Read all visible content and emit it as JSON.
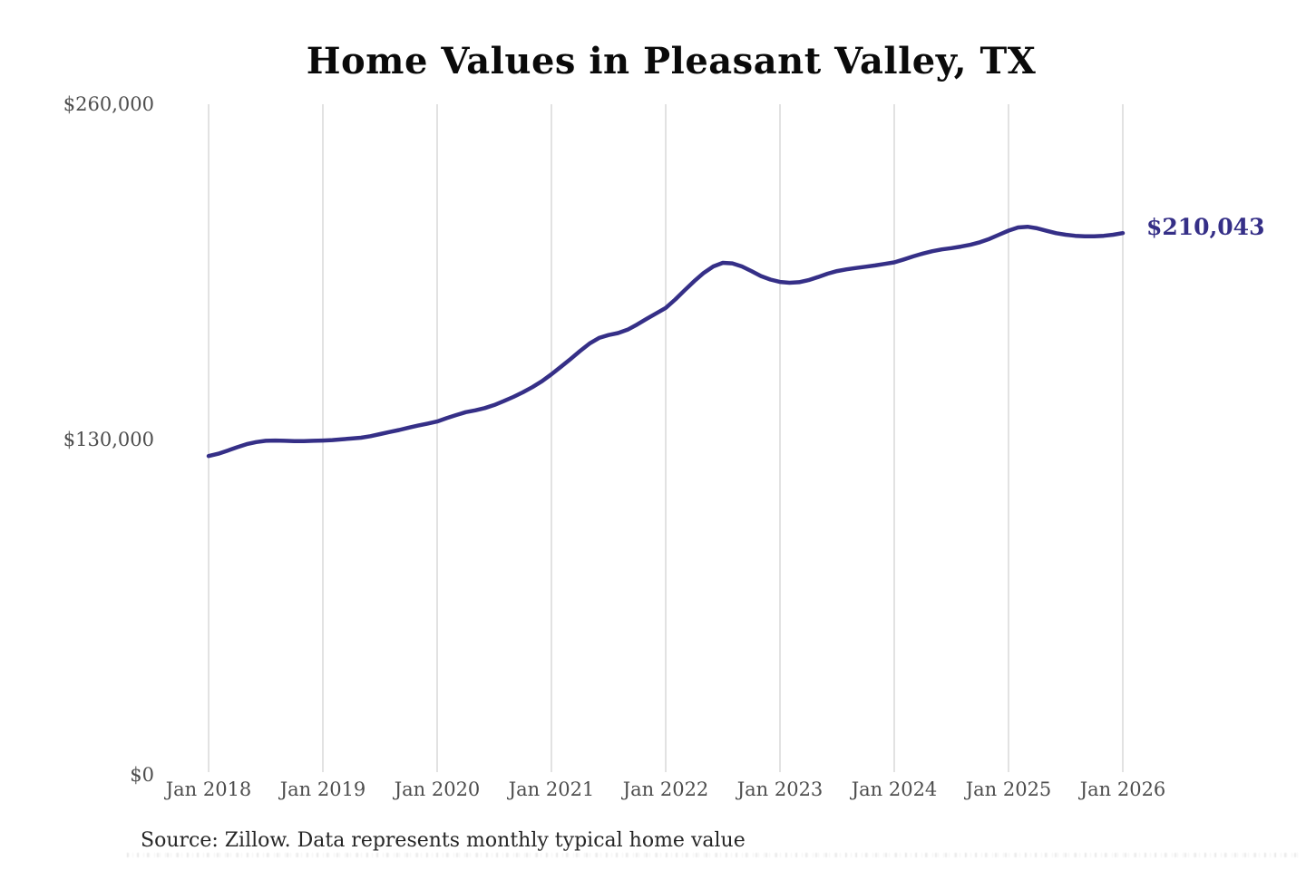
{
  "title": "Home Values in Pleasant Valley, TX",
  "annotation": {
    "label": "$210,043"
  },
  "source_note": "Source: Zillow. Data represents monthly typical home value",
  "colors": {
    "line": "#352f87",
    "annotation_text": "#352f87",
    "gridline": "#cfcfcf",
    "axis_label": "#4d4d4d",
    "title_text": "#0a0a0a",
    "source_text": "#262626",
    "background": "#ffffff"
  },
  "chart_data": {
    "type": "line",
    "title": "Home Values in Pleasant Valley, TX",
    "unit": "USD",
    "frequency": "monthly",
    "grid": "vertical-only",
    "legend": "none",
    "ylim": [
      0,
      260000
    ],
    "y_tick_labels": [
      "$0",
      "$130,000",
      "$260,000"
    ],
    "y_tick_values": [
      0,
      130000,
      260000
    ],
    "x_tick_labels": [
      "Jan 2018",
      "Jan 2019",
      "Jan 2020",
      "Jan 2021",
      "Jan 2022",
      "Jan 2023",
      "Jan 2024",
      "Jan 2025",
      "Jan 2026"
    ],
    "x_tick_indices": [
      0,
      12,
      24,
      36,
      48,
      60,
      72,
      84,
      96
    ],
    "last_value_label": "$210,043",
    "x": [
      "2018-01",
      "2018-02",
      "2018-03",
      "2018-04",
      "2018-05",
      "2018-06",
      "2018-07",
      "2018-08",
      "2018-09",
      "2018-10",
      "2018-11",
      "2018-12",
      "2019-01",
      "2019-02",
      "2019-03",
      "2019-04",
      "2019-05",
      "2019-06",
      "2019-07",
      "2019-08",
      "2019-09",
      "2019-10",
      "2019-11",
      "2019-12",
      "2020-01",
      "2020-02",
      "2020-03",
      "2020-04",
      "2020-05",
      "2020-06",
      "2020-07",
      "2020-08",
      "2020-09",
      "2020-10",
      "2020-11",
      "2020-12",
      "2021-01",
      "2021-02",
      "2021-03",
      "2021-04",
      "2021-05",
      "2021-06",
      "2021-07",
      "2021-08",
      "2021-09",
      "2021-10",
      "2021-11",
      "2021-12",
      "2022-01",
      "2022-02",
      "2022-03",
      "2022-04",
      "2022-05",
      "2022-06",
      "2022-07",
      "2022-08",
      "2022-09",
      "2022-10",
      "2022-11",
      "2022-12",
      "2023-01",
      "2023-02",
      "2023-03",
      "2023-04",
      "2023-05",
      "2023-06",
      "2023-07",
      "2023-08",
      "2023-09",
      "2023-10",
      "2023-11",
      "2023-12",
      "2024-01",
      "2024-02",
      "2024-03",
      "2024-04",
      "2024-05",
      "2024-06",
      "2024-07",
      "2024-08",
      "2024-09",
      "2024-10",
      "2024-11",
      "2024-12",
      "2025-01",
      "2025-02",
      "2025-03",
      "2025-04",
      "2025-05",
      "2025-06",
      "2025-07",
      "2025-08",
      "2025-09",
      "2025-10",
      "2025-11",
      "2025-12",
      "2026-01"
    ],
    "values": [
      123600,
      124500,
      125700,
      127000,
      128200,
      129000,
      129500,
      129600,
      129500,
      129400,
      129400,
      129500,
      129600,
      129800,
      130100,
      130400,
      130700,
      131300,
      132100,
      132900,
      133700,
      134600,
      135400,
      136200,
      137000,
      138300,
      139500,
      140600,
      141300,
      142200,
      143400,
      144900,
      146500,
      148300,
      150300,
      152600,
      155300,
      158200,
      161200,
      164300,
      167200,
      169400,
      170500,
      171300,
      172600,
      174600,
      176800,
      178900,
      181000,
      184300,
      187900,
      191400,
      194600,
      197100,
      198500,
      198300,
      197100,
      195300,
      193400,
      192000,
      191100,
      190800,
      191000,
      191800,
      193000,
      194300,
      195300,
      196000,
      196500,
      197000,
      197500,
      198100,
      198700,
      199800,
      201000,
      202100,
      203000,
      203700,
      204200,
      204800,
      205500,
      206500,
      207800,
      209400,
      211000,
      212200,
      212500,
      211900,
      210900,
      210000,
      209400,
      209000,
      208800,
      208800,
      209000,
      209400,
      210043
    ]
  }
}
